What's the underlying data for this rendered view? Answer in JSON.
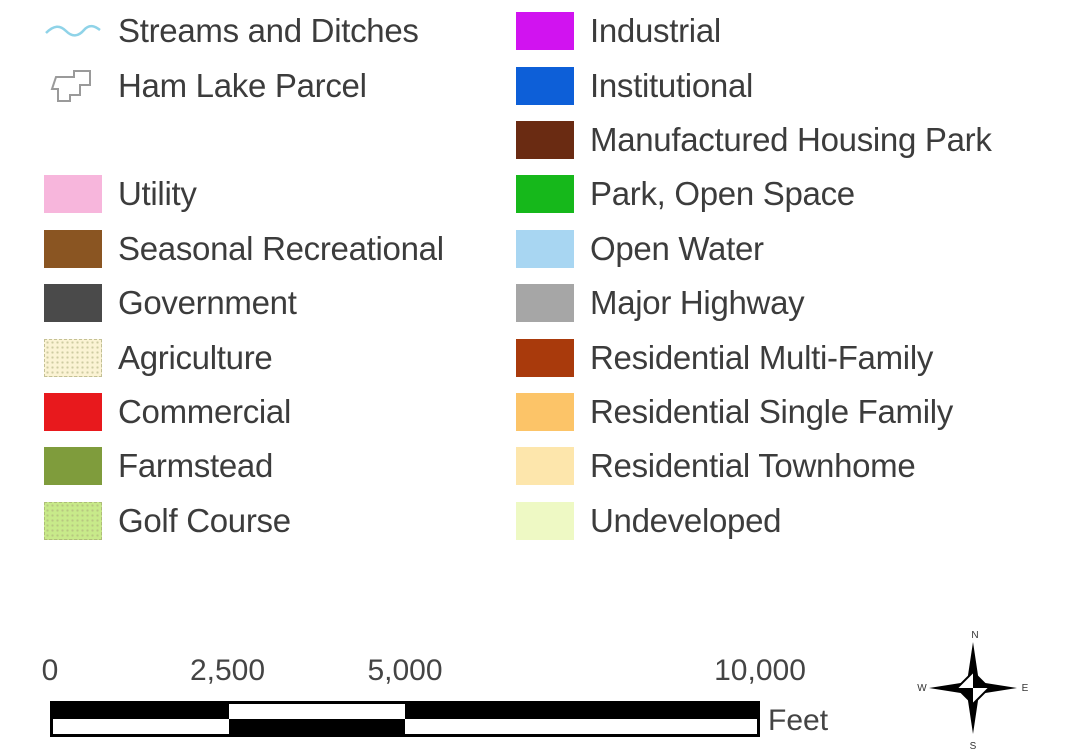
{
  "legend": {
    "left": [
      {
        "label": "Streams and Ditches",
        "symbol": "stream",
        "color": "#8fd3e8"
      },
      {
        "label": "Ham Lake Parcel",
        "symbol": "parcel",
        "color": "#9a9a9a"
      },
      null,
      {
        "label": "Utility",
        "color": "#f7b6dc"
      },
      {
        "label": "Seasonal Recreational",
        "color": "#8a5522"
      },
      {
        "label": "Government",
        "color": "#4a4a4a"
      },
      {
        "label": "Agriculture",
        "color": "#fbf3d4",
        "pattern": "dotted"
      },
      {
        "label": "Commercial",
        "color": "#e8191d"
      },
      {
        "label": "Farmstead",
        "color": "#7f9c3c"
      },
      {
        "label": "Golf Course",
        "color": "#c8ea8a",
        "pattern": "dotted"
      }
    ],
    "right": [
      {
        "label": "Industrial",
        "color": "#d113f0"
      },
      {
        "label": "Institutional",
        "color": "#0d5fd8"
      },
      {
        "label": "Manufactured Housing Park",
        "color": "#6a2b12"
      },
      {
        "label": "Park, Open Space",
        "color": "#16b81b"
      },
      {
        "label": "Open Water",
        "color": "#a8d6f2"
      },
      {
        "label": "Major Highway",
        "color": "#a6a6a6"
      },
      {
        "label": "Residential Multi-Family",
        "color": "#a93a0c"
      },
      {
        "label": "Residential Single Family",
        "color": "#fcc468"
      },
      {
        "label": "Residential Townhome",
        "color": "#fde6ac"
      },
      {
        "label": "Undeveloped",
        "color": "#eef9c4"
      }
    ]
  },
  "scale_bar": {
    "ticks": [
      {
        "value": 0,
        "label": "0"
      },
      {
        "value": 2500,
        "label": "2,500"
      },
      {
        "value": 5000,
        "label": "5,000"
      },
      {
        "value": 10000,
        "label": "10,000"
      }
    ],
    "max": 10000,
    "unit": "Feet"
  },
  "north_arrow": {
    "n": "N",
    "s": "S",
    "e": "E",
    "w": "W"
  }
}
